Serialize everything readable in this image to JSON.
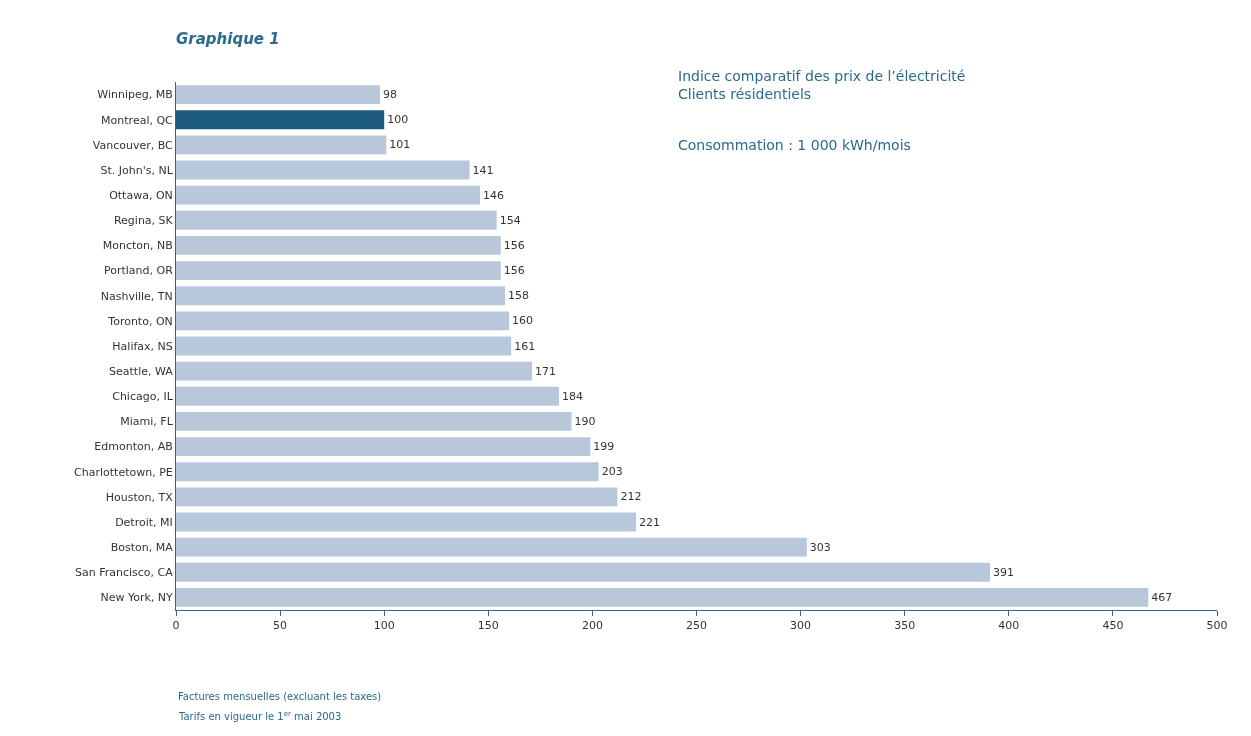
{
  "chart_data": {
    "type": "bar",
    "orientation": "horizontal",
    "title": "Graphique 1",
    "subtitle": "Indice comparatif des prix de l’électricité\nClients résidentiels",
    "annotations": [
      "Consommation : 1 000 kWh/mois",
      "Factures mensuelles (excluant les taxes)",
      "Tarifs en vigueur le 1$^{er}$ mai 2003"
    ],
    "categories": [
      "Winnipeg, MB",
      "Montreal, QC",
      "Vancouver, BC",
      "St. John's, NL",
      "Ottawa, ON",
      "Regina, SK",
      "Moncton, NB",
      "Portland, OR",
      "Nashville, TN",
      "Toronto, ON",
      "Halifax, NS",
      "Seattle, WA",
      "Chicago, IL",
      "Miami, FL",
      "Edmonton, AB",
      "Charlottetown, PE",
      "Houston, TX",
      "Detroit, MI",
      "Boston, MA",
      "San Francisco, CA",
      "New York, NY"
    ],
    "values": [
      98,
      100,
      101,
      141,
      146,
      154,
      156,
      156,
      158,
      160,
      161,
      171,
      184,
      190,
      199,
      203,
      212,
      221,
      303,
      391,
      467
    ],
    "colors": [
      "#b8c7da",
      "#1d5b7c",
      "#b8c7da",
      "#b8c7da",
      "#b8c7da",
      "#b8c7da",
      "#b8c7da",
      "#b8c7da",
      "#b8c7da",
      "#b8c7da",
      "#b8c7da",
      "#b8c7da",
      "#b8c7da",
      "#b8c7da",
      "#b8c7da",
      "#b8c7da",
      "#b8c7da",
      "#b8c7da",
      "#b8c7da",
      "#b8c7da",
      "#b8c7da"
    ],
    "data_labels": true,
    "xlim": [
      0,
      500
    ],
    "xticks": [
      0,
      50,
      100,
      150,
      200,
      250,
      300,
      350,
      400,
      450,
      500
    ],
    "grid": false
  }
}
